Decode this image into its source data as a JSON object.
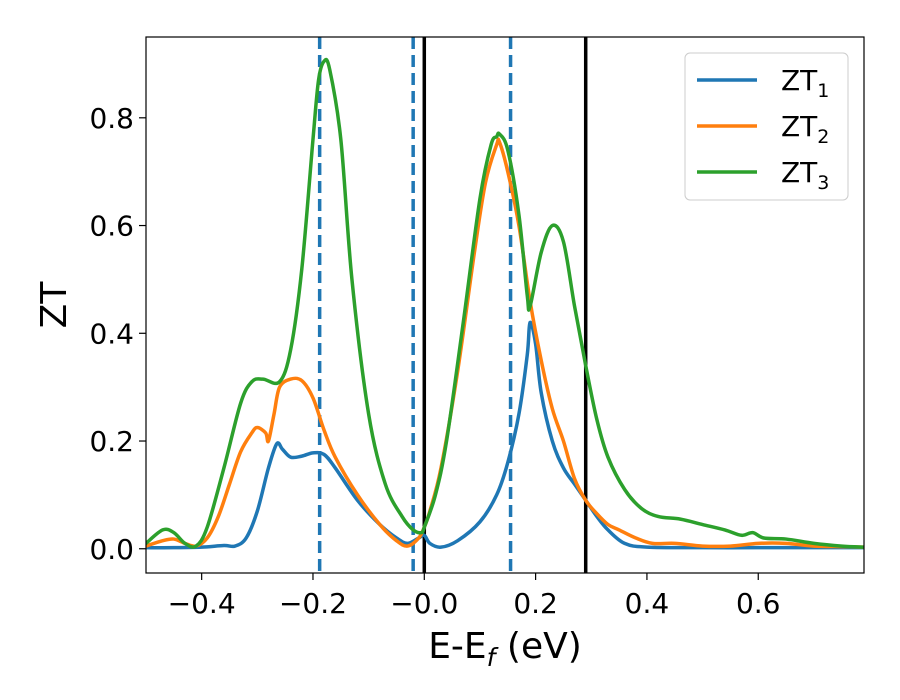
{
  "chart_data": {
    "type": "line",
    "xlabel": "E-E",
    "xlabel_sub": "f",
    "xlabel_unit": " (eV)",
    "ylabel": "ZT",
    "xlim": [
      -0.5,
      0.79
    ],
    "ylim": [
      -0.045,
      0.95
    ],
    "xticks": [
      -0.4,
      -0.2,
      0.0,
      0.2,
      0.4,
      0.6
    ],
    "xtick_labels": [
      "−0.4",
      "−0.2",
      "−0.0",
      "0.2",
      "0.4",
      "0.6"
    ],
    "yticks": [
      0.0,
      0.2,
      0.4,
      0.6,
      0.8
    ],
    "ytick_labels": [
      "0.0",
      "0.2",
      "0.4",
      "0.6",
      "0.8"
    ],
    "grid": false,
    "legend_position": "top-right",
    "vlines_dashed": [
      -0.188,
      -0.02,
      0.155
    ],
    "vlines_solid": [
      0.0,
      0.29
    ],
    "vline_dashed_color": "#1f77b4",
    "vline_solid_color": "#000000",
    "series": [
      {
        "name": "ZT",
        "sub": "1",
        "color": "#1f77b4",
        "x": [
          -0.5,
          -0.45,
          -0.4,
          -0.36,
          -0.34,
          -0.32,
          -0.3,
          -0.28,
          -0.265,
          -0.255,
          -0.24,
          -0.22,
          -0.2,
          -0.18,
          -0.16,
          -0.12,
          -0.08,
          -0.05,
          -0.03,
          -0.01,
          0.0,
          0.01,
          0.03,
          0.06,
          0.1,
          0.13,
          0.15,
          0.17,
          0.185,
          0.19,
          0.2,
          0.21,
          0.23,
          0.25,
          0.27,
          0.29,
          0.31,
          0.33,
          0.36,
          0.4,
          0.5,
          0.6,
          0.7,
          0.79
        ],
        "y": [
          0.002,
          0.002,
          0.003,
          0.006,
          0.005,
          0.02,
          0.07,
          0.15,
          0.195,
          0.185,
          0.17,
          0.172,
          0.178,
          0.175,
          0.15,
          0.09,
          0.045,
          0.02,
          0.01,
          0.02,
          0.025,
          0.01,
          0.003,
          0.015,
          0.05,
          0.1,
          0.16,
          0.25,
          0.36,
          0.42,
          0.38,
          0.29,
          0.2,
          0.15,
          0.12,
          0.09,
          0.06,
          0.035,
          0.01,
          0.003,
          0.002,
          0.002,
          0.002,
          0.002
        ]
      },
      {
        "name": "ZT",
        "sub": "2",
        "color": "#ff7f0e",
        "x": [
          -0.5,
          -0.47,
          -0.45,
          -0.43,
          -0.41,
          -0.39,
          -0.37,
          -0.35,
          -0.33,
          -0.31,
          -0.3,
          -0.285,
          -0.28,
          -0.27,
          -0.26,
          -0.24,
          -0.22,
          -0.2,
          -0.18,
          -0.16,
          -0.12,
          -0.08,
          -0.05,
          -0.03,
          -0.01,
          0.0,
          0.01,
          0.03,
          0.06,
          0.09,
          0.11,
          0.13,
          0.135,
          0.15,
          0.17,
          0.19,
          0.21,
          0.23,
          0.25,
          0.27,
          0.29,
          0.31,
          0.33,
          0.35,
          0.38,
          0.41,
          0.45,
          0.5,
          0.55,
          0.6,
          0.65,
          0.7,
          0.75,
          0.79
        ],
        "y": [
          0.005,
          0.015,
          0.018,
          0.01,
          0.005,
          0.02,
          0.06,
          0.12,
          0.18,
          0.215,
          0.225,
          0.215,
          0.2,
          0.25,
          0.3,
          0.315,
          0.312,
          0.28,
          0.22,
          0.17,
          0.1,
          0.045,
          0.015,
          0.005,
          0.02,
          0.04,
          0.07,
          0.15,
          0.33,
          0.55,
          0.68,
          0.75,
          0.755,
          0.7,
          0.6,
          0.46,
          0.35,
          0.26,
          0.2,
          0.13,
          0.09,
          0.065,
          0.045,
          0.035,
          0.02,
          0.01,
          0.01,
          0.005,
          0.005,
          0.01,
          0.01,
          0.005,
          0.004,
          0.003
        ]
      },
      {
        "name": "ZT",
        "sub": "3",
        "color": "#2ca02c",
        "x": [
          -0.5,
          -0.47,
          -0.45,
          -0.43,
          -0.41,
          -0.39,
          -0.36,
          -0.33,
          -0.31,
          -0.29,
          -0.26,
          -0.24,
          -0.22,
          -0.2,
          -0.19,
          -0.18,
          -0.17,
          -0.15,
          -0.13,
          -0.1,
          -0.07,
          -0.04,
          -0.02,
          -0.005,
          0.0,
          0.02,
          0.04,
          0.07,
          0.1,
          0.12,
          0.13,
          0.135,
          0.15,
          0.17,
          0.185,
          0.19,
          0.21,
          0.23,
          0.25,
          0.27,
          0.29,
          0.31,
          0.33,
          0.36,
          0.39,
          0.42,
          0.46,
          0.5,
          0.54,
          0.57,
          0.59,
          0.61,
          0.65,
          0.7,
          0.75,
          0.79
        ],
        "y": [
          0.01,
          0.035,
          0.03,
          0.01,
          0.005,
          0.04,
          0.15,
          0.27,
          0.31,
          0.315,
          0.31,
          0.37,
          0.52,
          0.76,
          0.87,
          0.905,
          0.89,
          0.76,
          0.5,
          0.25,
          0.12,
          0.06,
          0.035,
          0.03,
          0.04,
          0.1,
          0.2,
          0.42,
          0.65,
          0.75,
          0.765,
          0.77,
          0.74,
          0.62,
          0.47,
          0.45,
          0.55,
          0.6,
          0.57,
          0.45,
          0.34,
          0.24,
          0.17,
          0.11,
          0.075,
          0.06,
          0.055,
          0.045,
          0.035,
          0.025,
          0.03,
          0.02,
          0.018,
          0.01,
          0.005,
          0.003
        ]
      }
    ]
  }
}
